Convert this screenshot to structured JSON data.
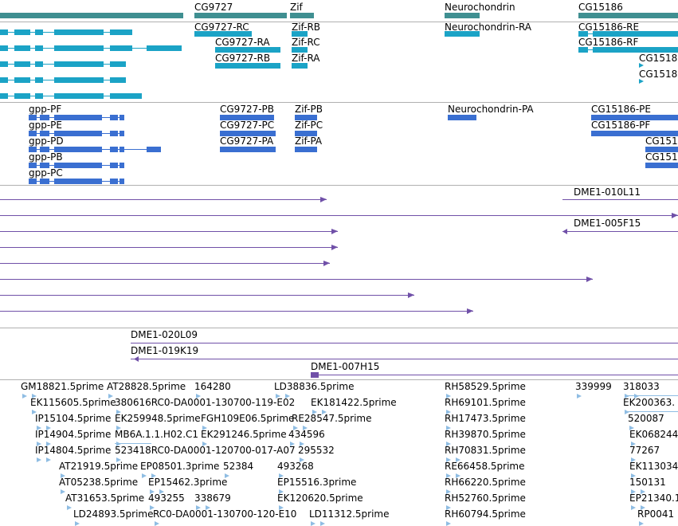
{
  "colors": {
    "gene": "#3f8f91",
    "transcript": "#1ba3c6",
    "cds": "#3a6fd1",
    "clone": "#7050a8",
    "est": "#8fbde3",
    "separator": "#b0b0b0"
  },
  "tracks": {
    "genes": {
      "labels": [
        "CG9727",
        "Zif",
        "Neurochondrin",
        "CG15186"
      ]
    },
    "transcripts": {
      "labels": [
        "CG9727-RC",
        "Zif-RB",
        "Neurochondrin-RA",
        "CG15186-RE",
        "CG9727-RA",
        "Zif-RC",
        "CG15186-RF",
        "CG9727-RB",
        "Zif-RA",
        "CG1518",
        "CG1518"
      ]
    },
    "cds": {
      "labels": [
        "gpp-PF",
        "CG9727-PB",
        "Zif-PB",
        "Neurochondrin-PA",
        "CG15186-PE",
        "gpp-PE",
        "CG9727-PC",
        "Zif-PC",
        "CG15186-PF",
        "gpp-PD",
        "CG9727-PA",
        "Zif-PA",
        "CG151",
        "gpp-PB",
        "CG151",
        "gpp-PC"
      ]
    },
    "clones": {
      "labels": [
        "DME1-010L11",
        "DME1-005F15",
        "DME1-020L09",
        "DME1-019K19",
        "DME1-007H15"
      ]
    },
    "ests": {
      "labels": [
        "GM18821.5prime",
        "AT28828.5prime",
        "164280",
        "LD38836.5prime",
        "RH58529.5prime",
        "339999",
        "318033",
        "EK115605.5prime",
        "380616RC0-DA0001-130700-119-E02",
        "EK181422.5prime",
        "RH69101.5prime",
        "EK200363.",
        "IP15104.5prime",
        "EK259948.5prime",
        "FGH109E06.5prime",
        "RE28547.5prime",
        "RH17473.5prime",
        "520087",
        "IP14904.5prime",
        "MB6A.1.1.H02.C1",
        "EK291246.5prime",
        "434596",
        "RH39870.5prime",
        "EK068244",
        "IP14804.5prime",
        "523418RC0-DA0001-120700-017-A07",
        "295532",
        "RH70831.5prime",
        "77267",
        "AT21919.5prime",
        "EP08501.3prime",
        "52384",
        "493268",
        "RE66458.5prime",
        "EK113034",
        "AT05238.5prime",
        "EP15462.3prime",
        "EP15516.3prime",
        "RH66220.5prime",
        "150131",
        "AT31653.5prime",
        "493255",
        "338679",
        "EK120620.5prime",
        "RH52760.5prime",
        "EP21340.1",
        "LD24893.5prime",
        "RC0-DA0001-130700-120-E10",
        "LD11312.5prime",
        "RH60794.5prime",
        "RP0041"
      ]
    }
  }
}
